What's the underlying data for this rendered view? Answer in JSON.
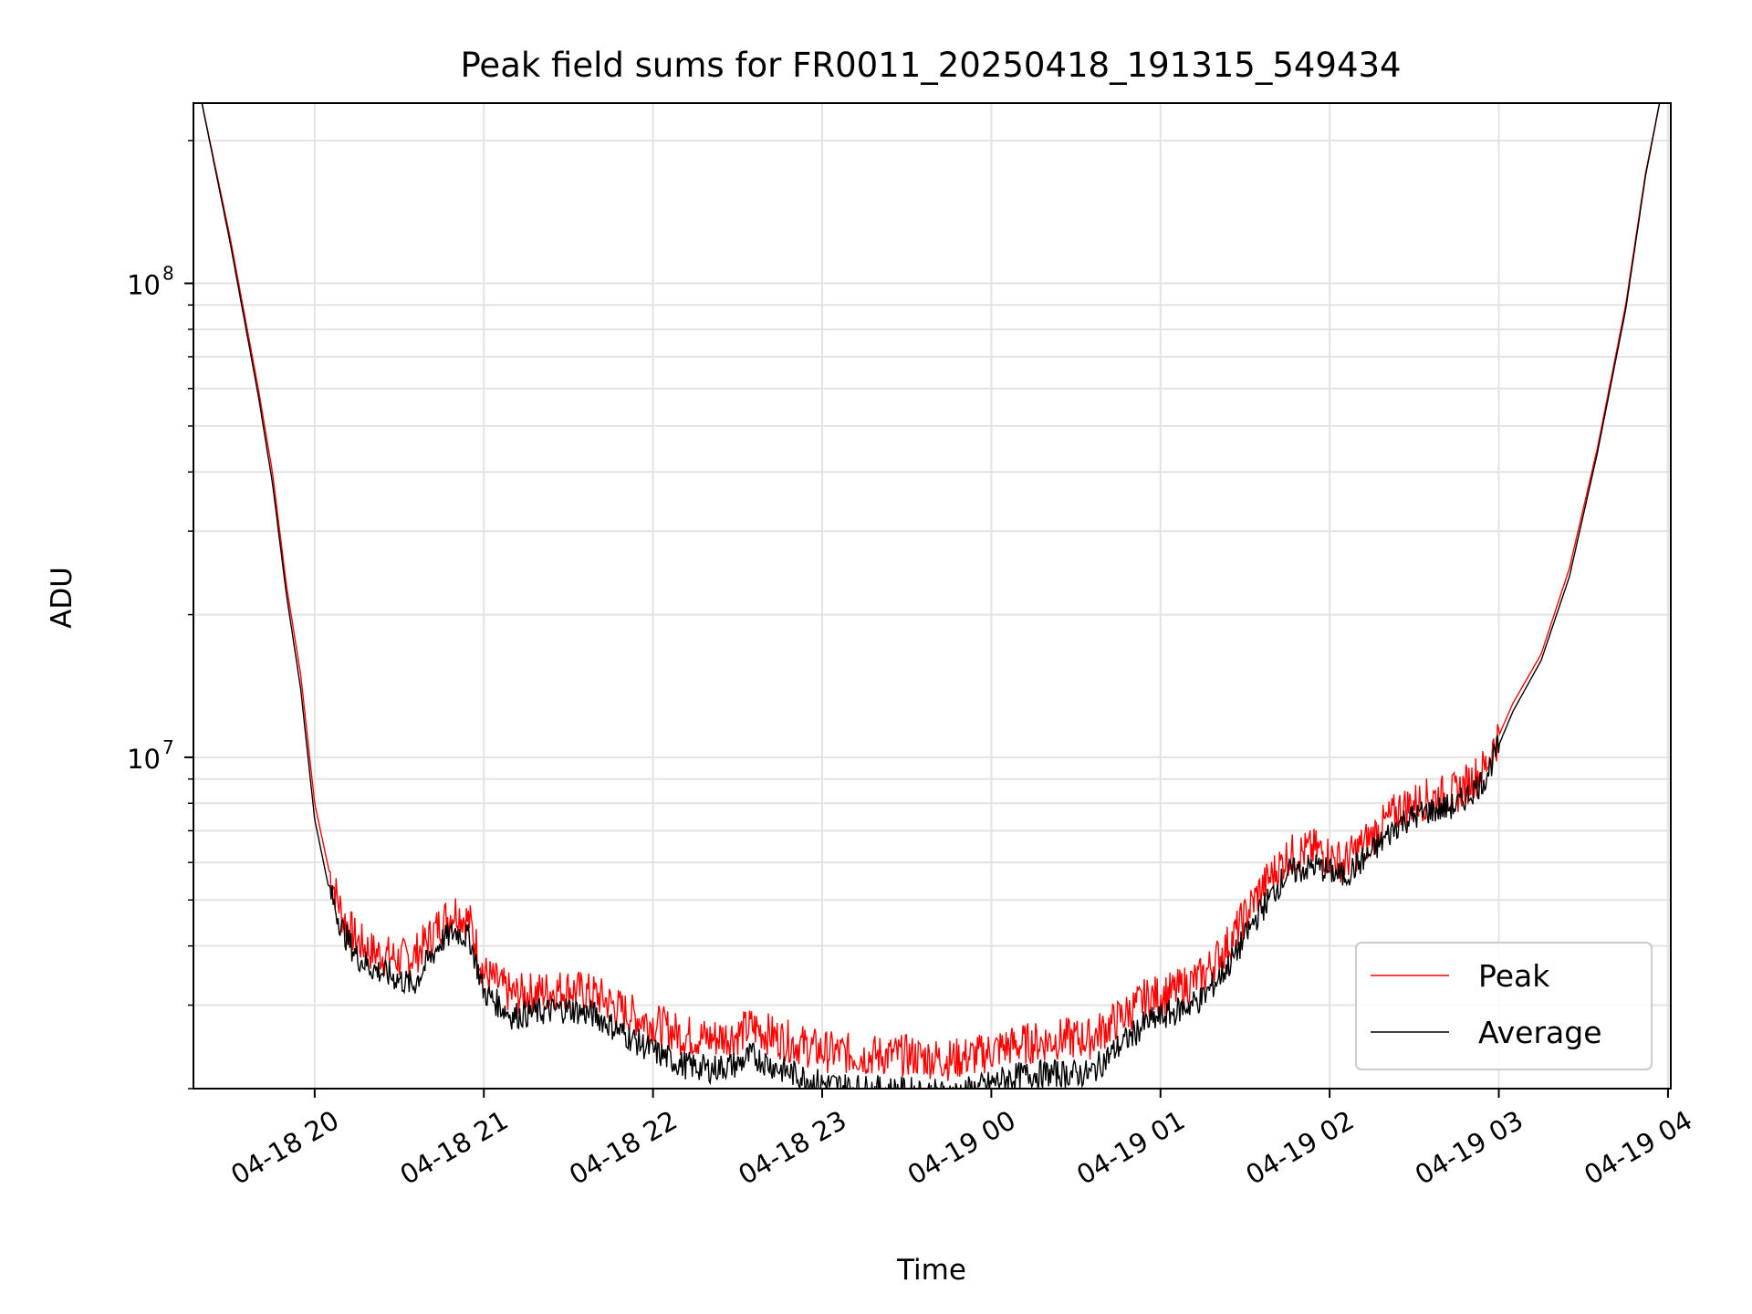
{
  "chart_data": {
    "type": "line",
    "title": "Peak field sums for FR0011_20250418_191315_549434",
    "xlabel": "Time",
    "ylabel": "ADU",
    "x_tick_labels": [
      "04-18 20",
      "04-18 21",
      "04-18 22",
      "04-18 23",
      "04-19 00",
      "04-19 01",
      "04-19 02",
      "04-19 03",
      "04-19 04"
    ],
    "y_tick_labels": [
      {
        "base": "10",
        "exp": "7"
      },
      {
        "base": "10",
        "exp": "8"
      }
    ],
    "y_scale": "log",
    "ylim": [
      2000000,
      240000000
    ],
    "xlim": [
      "04-18 19:17",
      "04-19 04:01"
    ],
    "grid": true,
    "legend_position": "lower-right",
    "series": [
      {
        "name": "Peak",
        "color": "#ff0000",
        "points": [
          [
            "04-18 19:20",
            240000000
          ],
          [
            "04-18 19:30",
            125000000
          ],
          [
            "04-18 19:40",
            60000000
          ],
          [
            "04-18 19:45",
            40000000
          ],
          [
            "04-18 19:50",
            23000000
          ],
          [
            "04-18 19:55",
            15000000
          ],
          [
            "04-18 20:00",
            8000000
          ],
          [
            "04-18 20:05",
            5800000
          ],
          [
            "04-18 20:10",
            4600000
          ],
          [
            "04-18 20:15",
            4100000
          ],
          [
            "04-18 20:20",
            3900000
          ],
          [
            "04-18 20:30",
            3750000
          ],
          [
            "04-18 20:35",
            3800000
          ],
          [
            "04-18 20:40",
            4100000
          ],
          [
            "04-18 20:45",
            4500000
          ],
          [
            "04-18 20:50",
            4750000
          ],
          [
            "04-18 20:55",
            4500000
          ],
          [
            "04-18 21:00",
            3500000
          ],
          [
            "04-18 21:10",
            3150000
          ],
          [
            "04-18 21:20",
            3200000
          ],
          [
            "04-18 21:30",
            3250000
          ],
          [
            "04-18 21:40",
            3150000
          ],
          [
            "04-18 21:50",
            2900000
          ],
          [
            "04-18 22:00",
            2750000
          ],
          [
            "04-18 22:10",
            2600000
          ],
          [
            "04-18 22:20",
            2550000
          ],
          [
            "04-18 22:30",
            2600000
          ],
          [
            "04-18 22:35",
            2700000
          ],
          [
            "04-18 22:45",
            2550000
          ],
          [
            "04-18 23:00",
            2400000
          ],
          [
            "04-18 23:15",
            2350000
          ],
          [
            "04-18 23:30",
            2350000
          ],
          [
            "04-18 23:45",
            2300000
          ],
          [
            "04-18 23:55",
            2350000
          ],
          [
            "04-19 00:05",
            2450000
          ],
          [
            "04-19 00:15",
            2500000
          ],
          [
            "04-19 00:25",
            2550000
          ],
          [
            "04-19 00:35",
            2550000
          ],
          [
            "04-19 00:45",
            2800000
          ],
          [
            "04-19 00:55",
            3100000
          ],
          [
            "04-19 01:05",
            3200000
          ],
          [
            "04-19 01:15",
            3450000
          ],
          [
            "04-19 01:25",
            4100000
          ],
          [
            "04-19 01:35",
            5200000
          ],
          [
            "04-19 01:45",
            6200000
          ],
          [
            "04-19 01:55",
            6400000
          ],
          [
            "04-19 02:05",
            6000000
          ],
          [
            "04-19 02:15",
            6800000
          ],
          [
            "04-19 02:25",
            7800000
          ],
          [
            "04-19 02:35",
            8200000
          ],
          [
            "04-19 02:45",
            8400000
          ],
          [
            "04-19 02:55",
            9500000
          ],
          [
            "04-19 03:05",
            13000000
          ],
          [
            "04-19 03:15",
            16500000
          ],
          [
            "04-19 03:25",
            25000000
          ],
          [
            "04-19 03:35",
            45000000
          ],
          [
            "04-19 03:45",
            90000000
          ],
          [
            "04-19 03:52",
            170000000
          ],
          [
            "04-19 03:57",
            240000000
          ]
        ]
      },
      {
        "name": "Average",
        "color": "#000000",
        "points": [
          [
            "04-18 19:20",
            240000000
          ],
          [
            "04-18 19:30",
            122000000
          ],
          [
            "04-18 19:40",
            58000000
          ],
          [
            "04-18 19:45",
            38000000
          ],
          [
            "04-18 19:50",
            22000000
          ],
          [
            "04-18 19:55",
            14000000
          ],
          [
            "04-18 20:00",
            7400000
          ],
          [
            "04-18 20:05",
            5300000
          ],
          [
            "04-18 20:10",
            4300000
          ],
          [
            "04-18 20:15",
            3800000
          ],
          [
            "04-18 20:20",
            3600000
          ],
          [
            "04-18 20:30",
            3400000
          ],
          [
            "04-18 20:35",
            3300000
          ],
          [
            "04-18 20:40",
            3700000
          ],
          [
            "04-18 20:45",
            4100000
          ],
          [
            "04-18 20:50",
            4300000
          ],
          [
            "04-18 20:55",
            4150000
          ],
          [
            "04-18 21:00",
            3200000
          ],
          [
            "04-18 21:10",
            2850000
          ],
          [
            "04-18 21:20",
            2900000
          ],
          [
            "04-18 21:30",
            2950000
          ],
          [
            "04-18 21:40",
            2850000
          ],
          [
            "04-18 21:50",
            2600000
          ],
          [
            "04-18 22:00",
            2400000
          ],
          [
            "04-18 22:10",
            2250000
          ],
          [
            "04-18 22:20",
            2200000
          ],
          [
            "04-18 22:30",
            2250000
          ],
          [
            "04-18 22:35",
            2350000
          ],
          [
            "04-18 22:45",
            2200000
          ],
          [
            "04-18 23:00",
            2050000
          ],
          [
            "04-18 23:15",
            2000000
          ],
          [
            "04-18 23:30",
            1980000
          ],
          [
            "04-18 23:45",
            1950000
          ],
          [
            "04-18 23:55",
            2000000
          ],
          [
            "04-19 00:05",
            2100000
          ],
          [
            "04-19 00:15",
            2150000
          ],
          [
            "04-19 00:25",
            2150000
          ],
          [
            "04-19 00:35",
            2150000
          ],
          [
            "04-19 00:45",
            2450000
          ],
          [
            "04-19 00:55",
            2750000
          ],
          [
            "04-19 01:05",
            2900000
          ],
          [
            "04-19 01:15",
            3100000
          ],
          [
            "04-19 01:25",
            3700000
          ],
          [
            "04-19 01:35",
            4700000
          ],
          [
            "04-19 01:45",
            5700000
          ],
          [
            "04-19 01:55",
            5900000
          ],
          [
            "04-19 02:05",
            5600000
          ],
          [
            "04-19 02:15",
            6300000
          ],
          [
            "04-19 02:25",
            7300000
          ],
          [
            "04-19 02:35",
            7700000
          ],
          [
            "04-19 02:45",
            7900000
          ],
          [
            "04-19 02:55",
            9000000
          ],
          [
            "04-19 03:05",
            12500000
          ],
          [
            "04-19 03:15",
            16000000
          ],
          [
            "04-19 03:25",
            24000000
          ],
          [
            "04-19 03:35",
            44000000
          ],
          [
            "04-19 03:45",
            88000000
          ],
          [
            "04-19 03:52",
            168000000
          ],
          [
            "04-19 03:57",
            240000000
          ]
        ]
      }
    ]
  }
}
